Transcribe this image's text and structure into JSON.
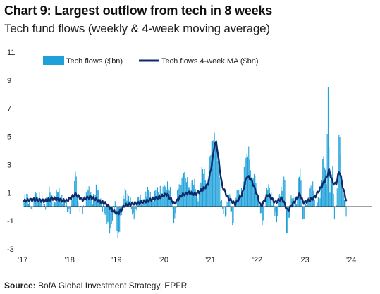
{
  "header": {
    "title": "Chart 9: Largest outflow from tech in 8 weeks",
    "subtitle": "Tech fund flows (weekly & 4-week moving average)"
  },
  "footer": {
    "source_label": "Source:",
    "source_text": "BofA Global Investment Strategy, EPFR"
  },
  "colors": {
    "bars": "#1ea1d9",
    "ma_line": "#0e2a6b",
    "zero_line": "#000000"
  },
  "chart_data": {
    "type": "bar",
    "title": "Chart 9: Largest outflow from tech in 8 weeks",
    "subtitle": "Tech fund flows (weekly & 4-week moving average)",
    "xlabel": "",
    "ylabel": "",
    "ylim": [
      -3,
      11
    ],
    "y_ticks": [
      11,
      9,
      7,
      5,
      3,
      1,
      -1,
      -3
    ],
    "x_ticks": [
      "'17",
      "'18",
      "'19",
      "'20",
      "'21",
      "'22",
      "'23",
      "'24"
    ],
    "grid": false,
    "legend_position": "top-left",
    "legend": [
      {
        "label": "Tech flows ($bn)",
        "kind": "bar"
      },
      {
        "label": "Tech flows 4-week MA ($bn)",
        "kind": "line"
      }
    ],
    "weekly_anchors": [
      [
        2017.0,
        0.3
      ],
      [
        2017.08,
        0.9
      ],
      [
        2017.17,
        -0.3
      ],
      [
        2017.25,
        1.0
      ],
      [
        2017.35,
        0.5
      ],
      [
        2017.45,
        0.2
      ],
      [
        2017.55,
        1.0
      ],
      [
        2017.65,
        0.3
      ],
      [
        2017.75,
        1.3
      ],
      [
        2017.85,
        0.4
      ],
      [
        2017.95,
        -0.4
      ],
      [
        2018.05,
        0.8
      ],
      [
        2018.1,
        2.5
      ],
      [
        2018.17,
        0.0
      ],
      [
        2018.25,
        -0.5
      ],
      [
        2018.35,
        1.2
      ],
      [
        2018.45,
        0.6
      ],
      [
        2018.55,
        1.2
      ],
      [
        2018.65,
        0.4
      ],
      [
        2018.75,
        -0.9
      ],
      [
        2018.85,
        -1.5
      ],
      [
        2018.95,
        0.4
      ],
      [
        2019.0,
        -2.2
      ],
      [
        2019.08,
        -0.6
      ],
      [
        2019.15,
        1.3
      ],
      [
        2019.25,
        0.4
      ],
      [
        2019.35,
        -0.9
      ],
      [
        2019.45,
        0.7
      ],
      [
        2019.55,
        0.3
      ],
      [
        2019.65,
        1.2
      ],
      [
        2019.75,
        0.4
      ],
      [
        2019.85,
        1.4
      ],
      [
        2019.95,
        0.9
      ],
      [
        2020.05,
        1.8
      ],
      [
        2020.15,
        0.4
      ],
      [
        2020.2,
        -1.2
      ],
      [
        2020.3,
        1.6
      ],
      [
        2020.4,
        2.4
      ],
      [
        2020.5,
        1.4
      ],
      [
        2020.6,
        1.9
      ],
      [
        2020.7,
        0.6
      ],
      [
        2020.8,
        2.7
      ],
      [
        2020.9,
        1.8
      ],
      [
        2020.97,
        3.6
      ],
      [
        2021.05,
        5.3
      ],
      [
        2021.1,
        4.4
      ],
      [
        2021.15,
        3.0
      ],
      [
        2021.2,
        0.4
      ],
      [
        2021.3,
        -0.6
      ],
      [
        2021.38,
        0.9
      ],
      [
        2021.45,
        -1.3
      ],
      [
        2021.55,
        1.2
      ],
      [
        2021.65,
        0.9
      ],
      [
        2021.72,
        3.3
      ],
      [
        2021.78,
        4.3
      ],
      [
        2021.85,
        1.9
      ],
      [
        2021.92,
        2.2
      ],
      [
        2022.0,
        0.4
      ],
      [
        2022.08,
        -1.3
      ],
      [
        2022.15,
        0.9
      ],
      [
        2022.22,
        1.6
      ],
      [
        2022.3,
        0.4
      ],
      [
        2022.38,
        -1.1
      ],
      [
        2022.45,
        0.9
      ],
      [
        2022.55,
        1.9
      ],
      [
        2022.6,
        -1.9
      ],
      [
        2022.7,
        0.8
      ],
      [
        2022.8,
        0.2
      ],
      [
        2022.88,
        2.7
      ],
      [
        2022.95,
        -0.9
      ],
      [
        2023.05,
        0.7
      ],
      [
        2023.15,
        1.8
      ],
      [
        2023.22,
        0.0
      ],
      [
        2023.3,
        0.6
      ],
      [
        2023.38,
        3.6
      ],
      [
        2023.44,
        1.6
      ],
      [
        2023.48,
        8.5
      ],
      [
        2023.52,
        1.0
      ],
      [
        2023.57,
        2.9
      ],
      [
        2023.62,
        -0.9
      ],
      [
        2023.67,
        1.3
      ],
      [
        2023.72,
        5.1
      ],
      [
        2023.78,
        1.8
      ],
      [
        2023.84,
        0.5
      ],
      [
        2023.88,
        -0.8
      ]
    ],
    "ma_anchors": [
      [
        2017.0,
        0.4
      ],
      [
        2017.15,
        0.5
      ],
      [
        2017.3,
        0.5
      ],
      [
        2017.45,
        0.4
      ],
      [
        2017.6,
        0.6
      ],
      [
        2017.75,
        0.5
      ],
      [
        2017.9,
        0.4
      ],
      [
        2018.1,
        0.9
      ],
      [
        2018.25,
        0.5
      ],
      [
        2018.4,
        0.7
      ],
      [
        2018.55,
        0.5
      ],
      [
        2018.75,
        0.2
      ],
      [
        2018.9,
        -0.3
      ],
      [
        2019.0,
        -0.5
      ],
      [
        2019.15,
        0.1
      ],
      [
        2019.3,
        0.2
      ],
      [
        2019.5,
        0.3
      ],
      [
        2019.7,
        0.5
      ],
      [
        2019.9,
        0.7
      ],
      [
        2020.05,
        0.9
      ],
      [
        2020.2,
        0.2
      ],
      [
        2020.35,
        0.8
      ],
      [
        2020.5,
        1.0
      ],
      [
        2020.65,
        0.9
      ],
      [
        2020.8,
        1.2
      ],
      [
        2020.92,
        1.6
      ],
      [
        2021.0,
        3.0
      ],
      [
        2021.06,
        4.4
      ],
      [
        2021.1,
        4.6
      ],
      [
        2021.16,
        3.0
      ],
      [
        2021.22,
        1.5
      ],
      [
        2021.35,
        0.6
      ],
      [
        2021.5,
        0.2
      ],
      [
        2021.65,
        0.9
      ],
      [
        2021.75,
        2.2
      ],
      [
        2021.85,
        1.9
      ],
      [
        2021.95,
        1.0
      ],
      [
        2022.05,
        0.0
      ],
      [
        2022.2,
        0.9
      ],
      [
        2022.35,
        0.3
      ],
      [
        2022.5,
        0.6
      ],
      [
        2022.62,
        -0.3
      ],
      [
        2022.75,
        0.3
      ],
      [
        2022.88,
        0.9
      ],
      [
        2022.95,
        0.3
      ],
      [
        2023.05,
        0.4
      ],
      [
        2023.2,
        0.7
      ],
      [
        2023.35,
        1.5
      ],
      [
        2023.45,
        2.1
      ],
      [
        2023.5,
        2.6
      ],
      [
        2023.58,
        1.7
      ],
      [
        2023.65,
        1.6
      ],
      [
        2023.72,
        2.6
      ],
      [
        2023.8,
        1.3
      ],
      [
        2023.88,
        0.3
      ]
    ]
  }
}
